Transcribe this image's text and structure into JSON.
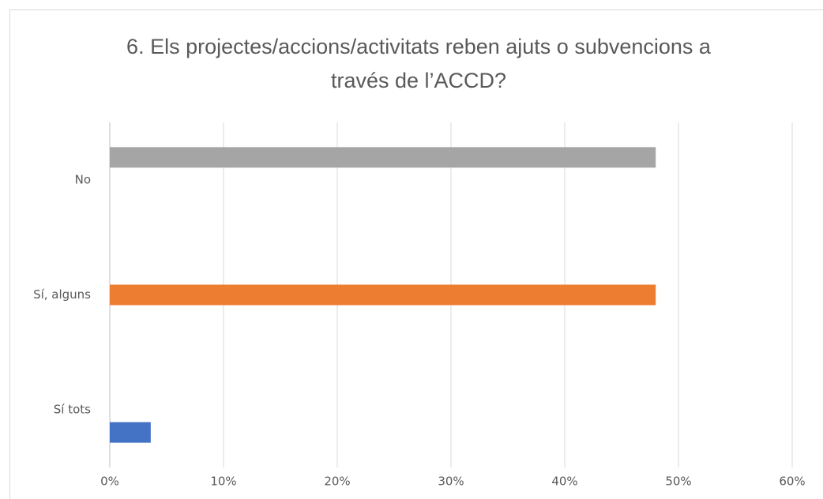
{
  "chart_data": {
    "type": "bar",
    "orientation": "horizontal",
    "title": "6. Els projectes/accions/activitats reben ajuts o subvencions a través de l’ACCD?",
    "categories": [
      "No",
      "Sí, alguns",
      "Sí tots"
    ],
    "values": [
      48,
      48,
      3.6
    ],
    "colors": [
      "#a5a5a5",
      "#ed7d31",
      "#4472c4"
    ],
    "xlim": [
      0,
      60
    ],
    "xticks": [
      {
        "value": 0,
        "label": "0%"
      },
      {
        "value": 10,
        "label": "10%"
      },
      {
        "value": 20,
        "label": "20%"
      },
      {
        "value": 30,
        "label": "30%"
      },
      {
        "value": 40,
        "label": "40%"
      },
      {
        "value": 50,
        "label": "50%"
      },
      {
        "value": 60,
        "label": "60%"
      }
    ],
    "grid": true
  }
}
